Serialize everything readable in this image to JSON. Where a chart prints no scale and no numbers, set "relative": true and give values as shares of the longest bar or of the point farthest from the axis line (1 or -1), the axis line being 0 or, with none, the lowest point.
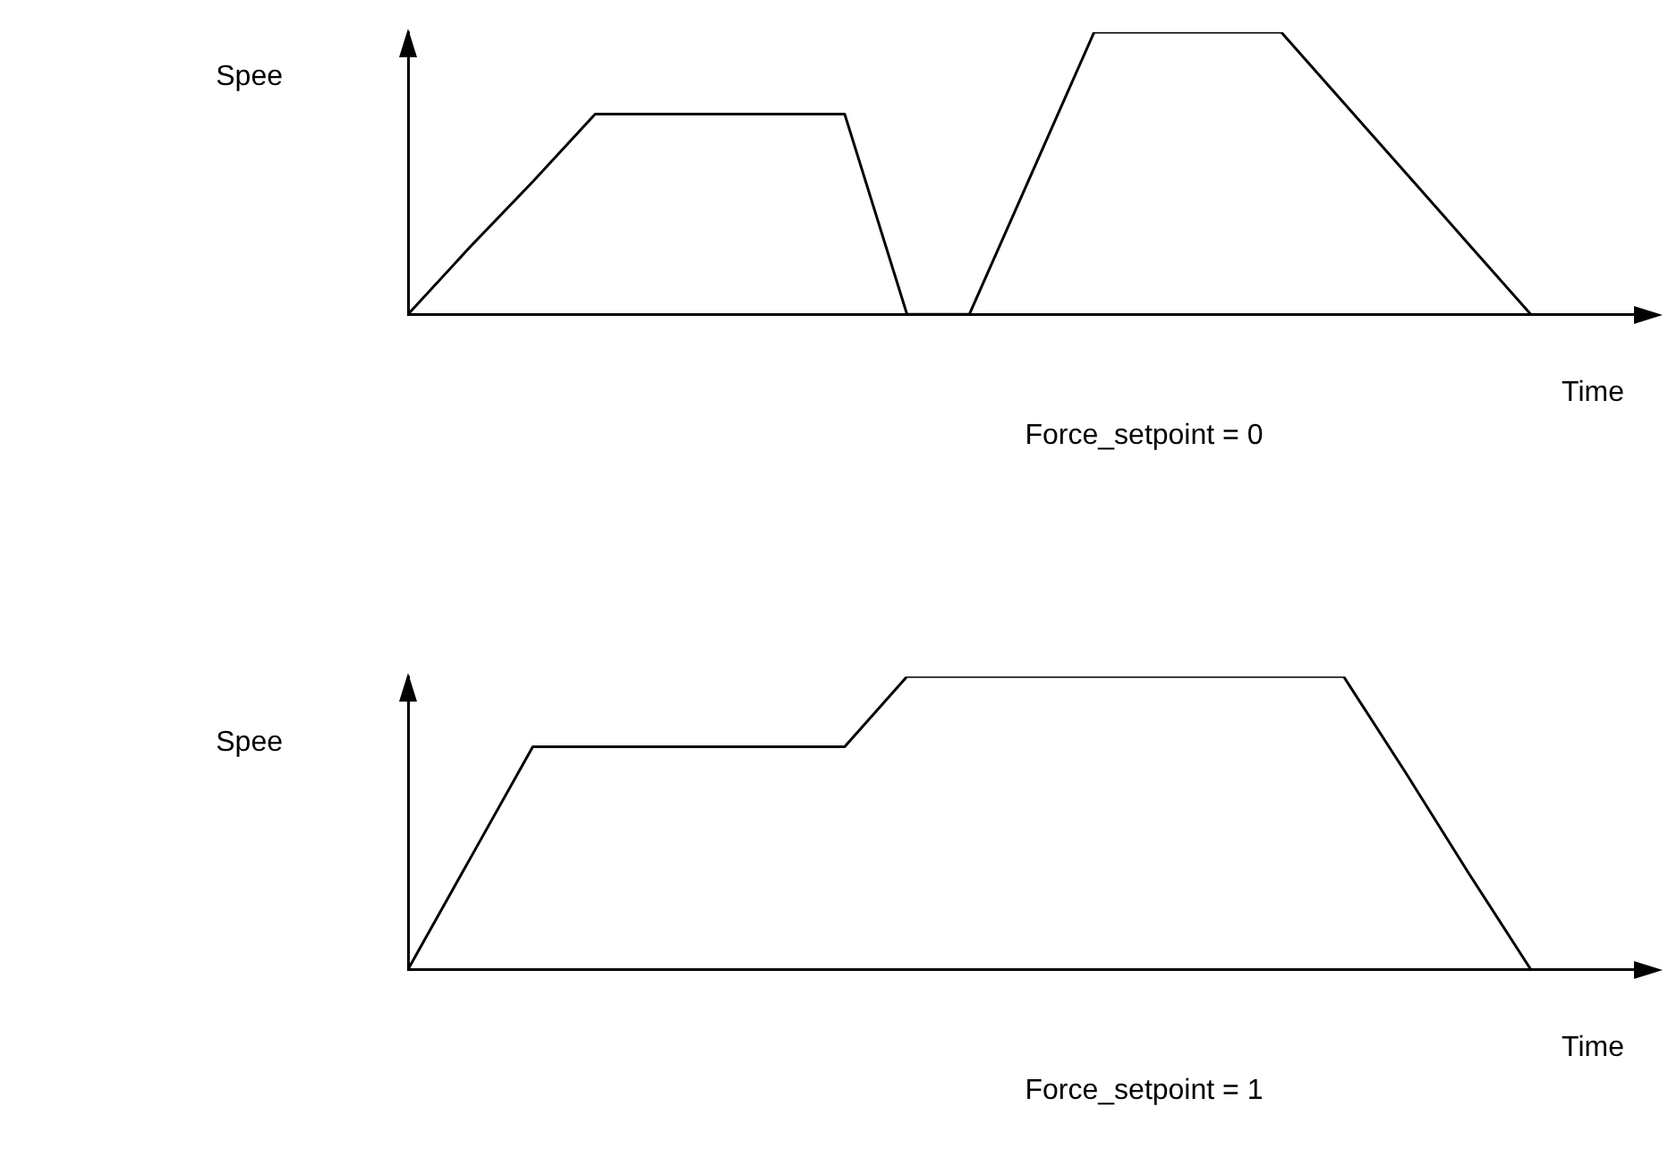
{
  "chart_data": [
    {
      "type": "line",
      "ylabel": "Spee",
      "xlabel": "Time",
      "annotations": [
        "Force_setpoint = 0"
      ],
      "relative": true,
      "grid": false,
      "legend": false,
      "marker": "none",
      "line_style": "solid",
      "categories": [
        null,
        null,
        null,
        null,
        null,
        null,
        null,
        null,
        null,
        null,
        null,
        null,
        null,
        null,
        null,
        null,
        null,
        null,
        null,
        null,
        null
      ],
      "series": [
        {
          "color": "#000000",
          "values": [
            0,
            0.24,
            0.47,
            0.71,
            0.71,
            0.71,
            0.71,
            0.71,
            0,
            0,
            0.5,
            1,
            1,
            1,
            1,
            0.75,
            0.5,
            0.25,
            0,
            null,
            null
          ]
        }
      ]
    },
    {
      "type": "line",
      "ylabel": "Spee",
      "xlabel": "Time",
      "annotations": [
        "Force_setpoint = 1"
      ],
      "relative": true,
      "grid": false,
      "legend": false,
      "marker": "none",
      "line_style": "solid",
      "categories": [
        null,
        null,
        null,
        null,
        null,
        null,
        null,
        null,
        null,
        null,
        null,
        null,
        null,
        null,
        null,
        null,
        null,
        null,
        null,
        null,
        null
      ],
      "series": [
        {
          "color": "#000000",
          "values": [
            0,
            0.38,
            0.76,
            0.76,
            0.76,
            0.76,
            0.76,
            0.76,
            1,
            1,
            1,
            1,
            1,
            1,
            1,
            1,
            0.67,
            0.33,
            0,
            null,
            null
          ]
        }
      ]
    }
  ]
}
